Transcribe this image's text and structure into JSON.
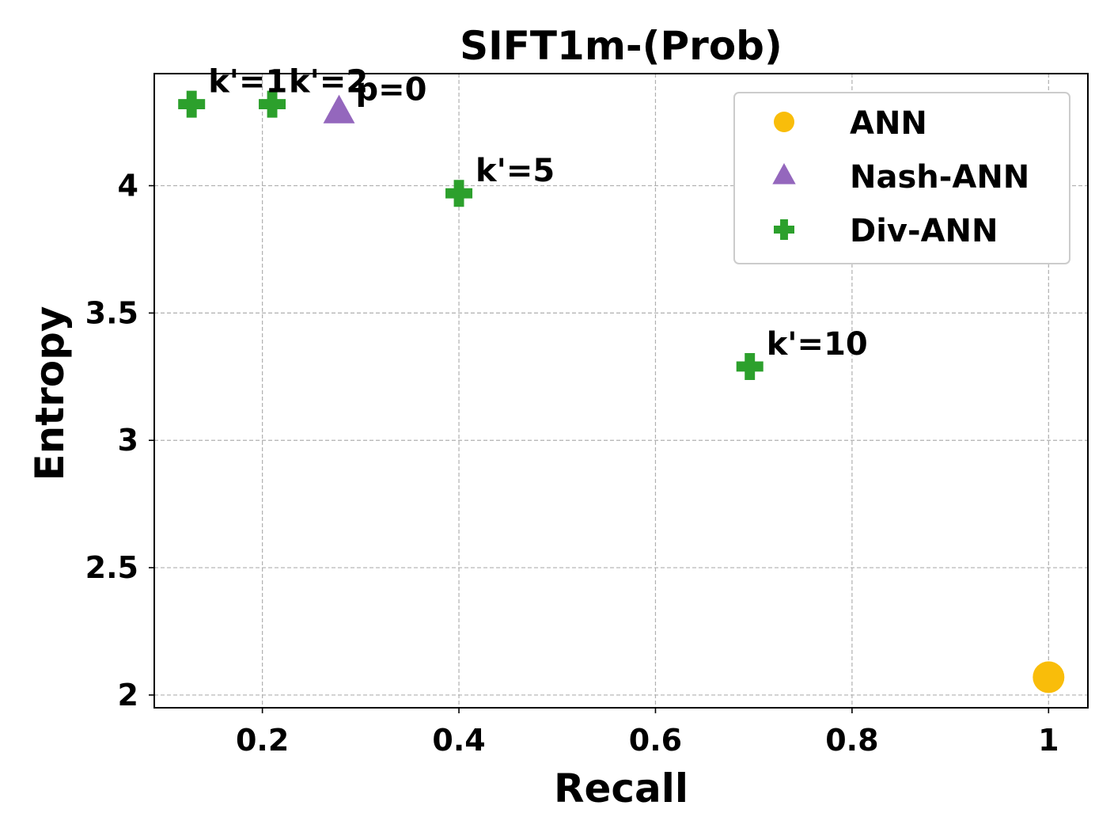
{
  "chart_data": {
    "type": "scatter",
    "title": "SIFT1m-(Prob)",
    "xlabel": "Recall",
    "ylabel": "Entropy",
    "xlim": [
      0.09,
      1.04
    ],
    "ylim": [
      1.95,
      4.44
    ],
    "xticks": [
      0.2,
      0.4,
      0.6,
      0.8,
      1.0
    ],
    "xtick_labels": [
      "0.2",
      "0.4",
      "0.6",
      "0.8",
      "1"
    ],
    "yticks": [
      2.0,
      2.5,
      3.0,
      3.5,
      4.0
    ],
    "ytick_labels": [
      "2",
      "2.5",
      "3",
      "3.5",
      "4"
    ],
    "grid": true,
    "legend_position": "top-right",
    "series": [
      {
        "name": "ANN",
        "marker": "circle",
        "color": "#f9bd0a",
        "points": [
          {
            "x": 1.0,
            "y": 2.07,
            "label": ""
          }
        ]
      },
      {
        "name": "Nash-ANN",
        "marker": "triangle",
        "color": "#9467bd",
        "points": [
          {
            "x": 0.278,
            "y": 4.29,
            "label": "p=0"
          }
        ]
      },
      {
        "name": "Div-ANN",
        "marker": "plus",
        "color": "#2ca02c",
        "points": [
          {
            "x": 0.128,
            "y": 4.32,
            "label": "k'=1"
          },
          {
            "x": 0.21,
            "y": 4.32,
            "label": "k'=2"
          },
          {
            "x": 0.4,
            "y": 3.97,
            "label": "k'=5"
          },
          {
            "x": 0.696,
            "y": 3.29,
            "label": "k'=10"
          }
        ]
      }
    ]
  }
}
